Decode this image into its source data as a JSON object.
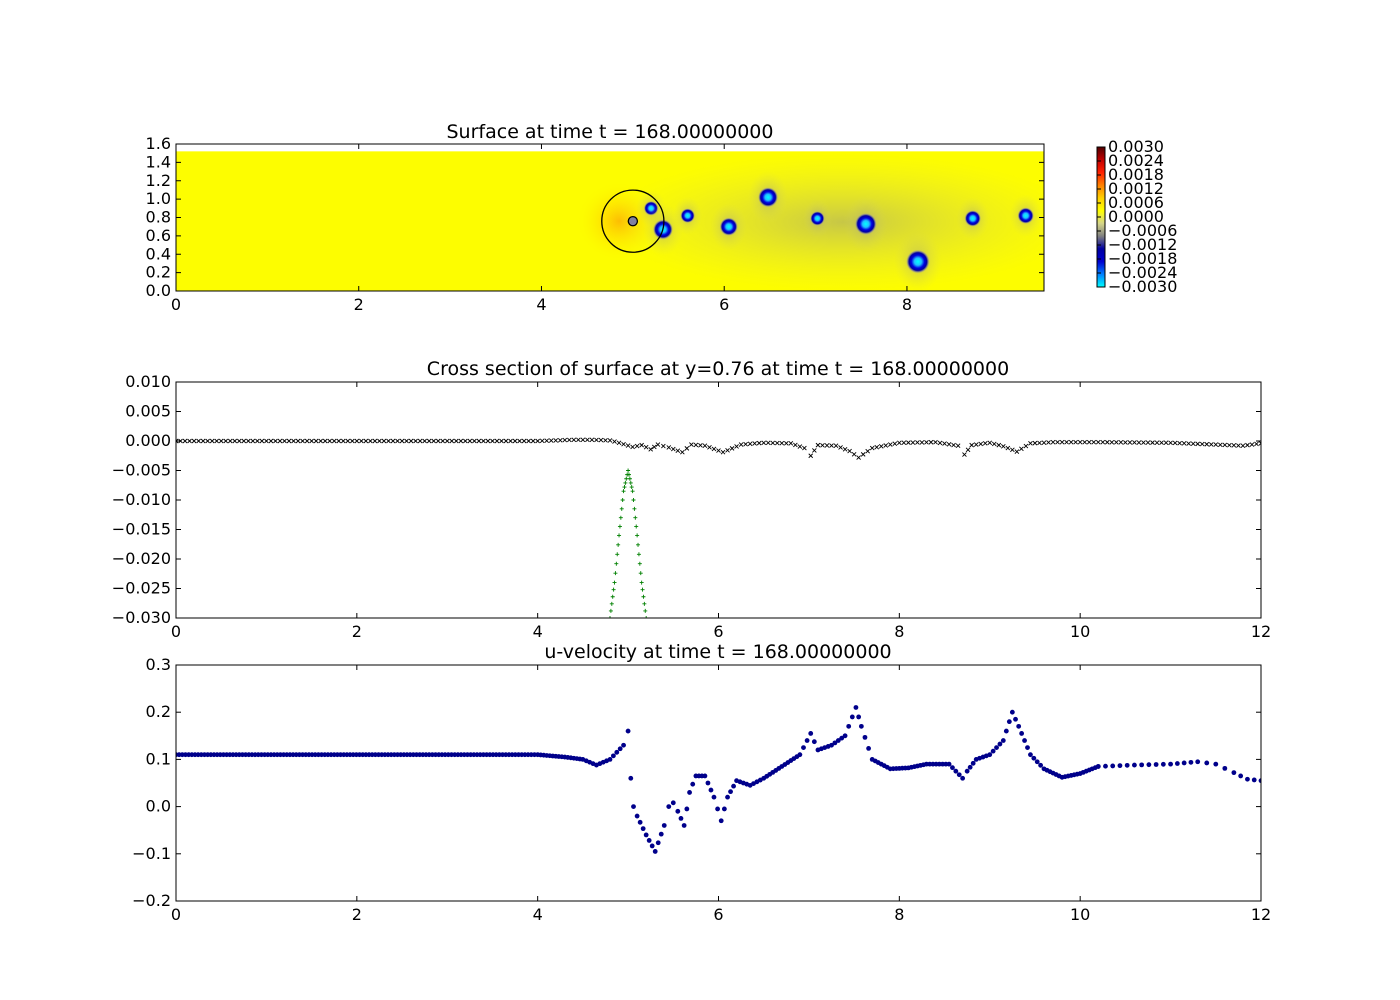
{
  "figure": {
    "background": "#ffffff"
  },
  "chart_data": [
    {
      "id": "surface",
      "type": "heatmap",
      "title": "Surface at time t =   168.00000000",
      "xlim": [
        0,
        9.5
      ],
      "ylim": [
        0,
        1.6
      ],
      "xticks": [
        0,
        2,
        4,
        6,
        8
      ],
      "yticks": [
        0.0,
        0.2,
        0.4,
        0.6,
        0.8,
        1.0,
        1.2,
        1.4,
        1.6
      ],
      "xtick_labels": [
        "0",
        "2",
        "4",
        "6",
        "8"
      ],
      "ytick_labels": [
        "0.0",
        "0.2",
        "0.4",
        "0.6",
        "0.8",
        "1.0",
        "1.2",
        "1.4",
        "1.6"
      ],
      "domain_top": 1.52,
      "background_color": "#fdfd00",
      "vortices": [
        {
          "x": 5.2,
          "y": 0.9,
          "r": 0.08
        },
        {
          "x": 5.33,
          "y": 0.67,
          "r": 0.11
        },
        {
          "x": 5.6,
          "y": 0.82,
          "r": 0.08
        },
        {
          "x": 6.05,
          "y": 0.7,
          "r": 0.1
        },
        {
          "x": 6.48,
          "y": 1.02,
          "r": 0.11
        },
        {
          "x": 7.02,
          "y": 0.79,
          "r": 0.08
        },
        {
          "x": 7.55,
          "y": 0.73,
          "r": 0.12
        },
        {
          "x": 8.12,
          "y": 0.32,
          "r": 0.13
        },
        {
          "x": 8.72,
          "y": 0.79,
          "r": 0.09
        },
        {
          "x": 9.3,
          "y": 0.82,
          "r": 0.09
        }
      ],
      "body": {
        "x": 5.0,
        "y": 0.76,
        "r_outer": 0.34,
        "r_inner": 0.05
      },
      "colorbar": {
        "ticks": [
          "0.0030",
          "0.0024",
          "0.0018",
          "0.0012",
          "0.0006",
          "0.0000",
          "−0.0006",
          "−0.0012",
          "−0.0018",
          "−0.0024",
          "−0.0030"
        ],
        "colors": [
          "#00ffff",
          "#0080ff",
          "#0000d0",
          "#0000a0",
          "#808080",
          "#d6d68a",
          "#ffff00",
          "#ffd000",
          "#ff8000",
          "#ff2000",
          "#c00000",
          "#500000"
        ]
      }
    },
    {
      "id": "cross-section",
      "type": "scatter",
      "title": "Cross section of surface at y=0.76 at time t =   168.00000000",
      "xlim": [
        0,
        12
      ],
      "ylim": [
        -0.03,
        0.01
      ],
      "xticks": [
        0,
        2,
        4,
        6,
        8,
        10,
        12
      ],
      "yticks": [
        0.01,
        0.005,
        0.0,
        -0.005,
        -0.01,
        -0.015,
        -0.02,
        -0.025,
        -0.03
      ],
      "xtick_labels": [
        "0",
        "2",
        "4",
        "6",
        "8",
        "10",
        "12"
      ],
      "ytick_labels": [
        "0.010",
        "0.005",
        "0.000",
        "−0.005",
        "−0.010",
        "−0.015",
        "−0.020",
        "−0.025",
        "−0.030"
      ],
      "series": [
        {
          "marker": "x",
          "color": "#000000",
          "x": [
            0,
            2,
            2.8,
            3.5,
            4.0,
            4.4,
            4.6,
            4.8,
            4.9,
            5.05,
            5.15,
            5.25,
            5.33,
            5.45,
            5.6,
            5.7,
            5.85,
            6.05,
            6.25,
            6.5,
            6.8,
            6.95,
            7.02,
            7.1,
            7.3,
            7.45,
            7.55,
            7.7,
            8.0,
            8.4,
            8.65,
            8.72,
            8.8,
            9.0,
            9.15,
            9.3,
            9.45,
            9.7,
            10.2,
            11.0,
            11.8,
            12.0
          ],
          "y": [
            0,
            0,
            0,
            0,
            0,
            0.0002,
            0.0002,
            0.0001,
            -0.0003,
            -0.001,
            -0.0007,
            -0.0014,
            -0.0006,
            -0.0011,
            -0.0019,
            -0.0006,
            -0.0008,
            -0.0019,
            -0.0006,
            -0.0003,
            -0.0004,
            -0.0012,
            -0.0025,
            -0.0007,
            -0.0008,
            -0.0017,
            -0.0028,
            -0.0012,
            -0.0003,
            -0.0002,
            -0.0008,
            -0.0023,
            -0.0007,
            -0.0003,
            -0.0009,
            -0.0018,
            -0.0004,
            -0.0002,
            -0.0002,
            -0.0003,
            -0.0008,
            -0.0004
          ]
        },
        {
          "marker": "+",
          "color": "#008000",
          "x": [
            4.8,
            4.85,
            4.9,
            4.95,
            5.0,
            5.05,
            5.1,
            5.15,
            5.2
          ],
          "y": [
            -0.03,
            -0.024,
            -0.016,
            -0.0085,
            -0.005,
            -0.0085,
            -0.016,
            -0.024,
            -0.03
          ]
        }
      ]
    },
    {
      "id": "u-velocity",
      "type": "scatter",
      "title": "u-velocity at time t =   168.00000000",
      "xlim": [
        0,
        12
      ],
      "ylim": [
        -0.2,
        0.3
      ],
      "xticks": [
        0,
        2,
        4,
        6,
        8,
        10,
        12
      ],
      "yticks": [
        0.3,
        0.2,
        0.1,
        0.0,
        -0.1,
        -0.2
      ],
      "xtick_labels": [
        "0",
        "2",
        "4",
        "6",
        "8",
        "10",
        "12"
      ],
      "ytick_labels": [
        "0.3",
        "0.2",
        "0.1",
        "0.0",
        "−0.1",
        "−0.2"
      ],
      "series": [
        {
          "marker": "o",
          "color": "#00008b",
          "x": [
            0,
            2.8,
            4.0,
            4.3,
            4.5,
            4.65,
            4.8,
            4.95,
            5.0,
            5.03,
            5.06,
            5.1,
            5.2,
            5.3,
            5.4,
            5.45,
            5.5,
            5.55,
            5.62,
            5.68,
            5.75,
            5.85,
            5.95,
            6.03,
            6.1,
            6.2,
            6.35,
            6.5,
            6.7,
            6.9,
            7.02,
            7.1,
            7.25,
            7.4,
            7.52,
            7.58,
            7.7,
            7.9,
            8.1,
            8.3,
            8.55,
            8.7,
            8.75,
            8.85,
            9.0,
            9.15,
            9.25,
            9.32,
            9.45,
            9.6,
            9.8,
            10.0,
            10.2
          ],
          "y": [
            0.11,
            0.11,
            0.11,
            0.105,
            0.1,
            0.088,
            0.1,
            0.13,
            0.16,
            0.06,
            0.0,
            -0.02,
            -0.06,
            -0.095,
            -0.04,
            0.0,
            0.008,
            -0.01,
            -0.04,
            0.03,
            0.065,
            0.065,
            0.02,
            -0.03,
            0.02,
            0.055,
            0.045,
            0.06,
            0.085,
            0.11,
            0.155,
            0.12,
            0.13,
            0.15,
            0.21,
            0.17,
            0.1,
            0.08,
            0.082,
            0.09,
            0.09,
            0.06,
            0.075,
            0.1,
            0.11,
            0.14,
            0.2,
            0.17,
            0.11,
            0.08,
            0.062,
            0.07,
            0.085
          ]
        },
        {
          "marker": "o",
          "color": "#00008b",
          "x": [
            10.2,
            10.6,
            11.0,
            11.3,
            11.5,
            11.7,
            11.85,
            12.0
          ],
          "y": [
            0.085,
            0.088,
            0.09,
            0.095,
            0.09,
            0.072,
            0.058,
            0.055
          ]
        }
      ]
    }
  ]
}
